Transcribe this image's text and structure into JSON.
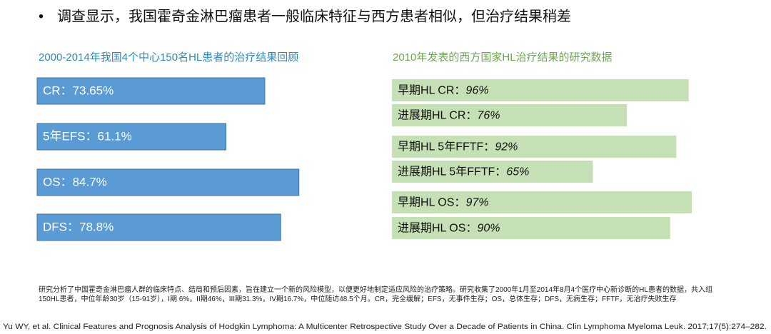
{
  "header": {
    "bullet": "•",
    "title": "调查显示，我国霍奇金淋巴瘤患者一般临床特征与西方患者相似，但治疗结果稍差"
  },
  "chart_data": [
    {
      "type": "bar",
      "title": "2000-2014年我国4个中心150名HL患者的治疗结果回顾",
      "categories": [
        "CR：",
        "5年EFS：",
        "OS：",
        "DFS："
      ],
      "values": [
        73.65,
        61.1,
        84.7,
        78.8
      ],
      "value_labels": [
        "73.65%",
        "61.1%",
        "84.7%",
        "78.8%"
      ],
      "color": "#5b9bd5"
    },
    {
      "type": "bar",
      "title": "2010年发表的西方国家HL治疗结果的研究数据",
      "categories": [
        "早期HL CR：",
        "进展期HL CR：",
        "早期HL 5年FFTF：",
        "进展期HL 5年FFTF：",
        "早期HL OS：",
        "进展期HL OS："
      ],
      "values": [
        96,
        76,
        92,
        65,
        97,
        90
      ],
      "value_labels": [
        "96%",
        "76%",
        "92%",
        "65%",
        "97%",
        "90%"
      ],
      "color": "#c5e0b4"
    }
  ],
  "footnote": "研究分析了中国霍奇金淋巴瘤人群的临床特点、结局和预后因素，旨在建立一个新的风险模型，以便更好地制定适应风险的治疗策略。研究收集了2000年1月至2014年8月4个医疗中心新诊断的HL患者的数据，共入组150HL患者，中位年龄30岁（15-91岁），I期 6%，II期46%，III期31.3%，IV期16.7%，中位随访48.5个月。CR，完全缓解；EFS，无事件生存；OS，总体生存；DFS，无病生存；FFTF，无治疗失败生存",
  "citation": "Yu WY, et al. Clinical Features and Prognosis Analysis of Hodgkin Lymphoma: A Multicenter Retrospective Study Over a Decade of Patients in China. Clin Lymphoma Myeloma Leuk. 2017;17(5):274–282."
}
